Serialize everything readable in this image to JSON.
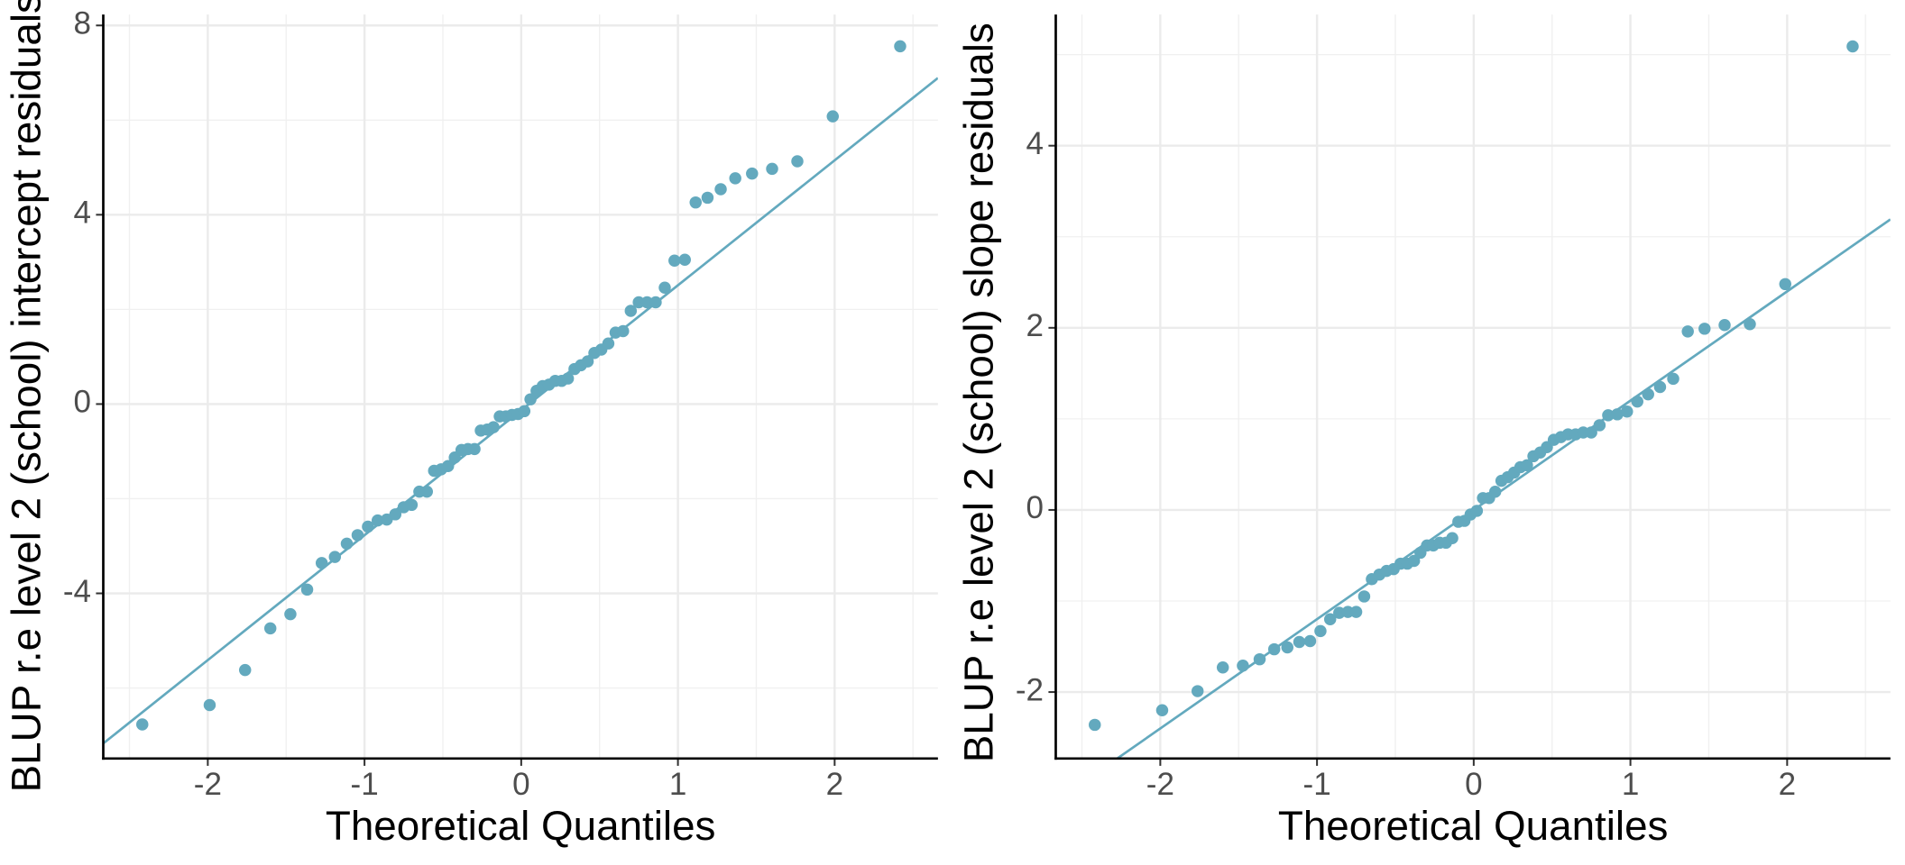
{
  "chart_data": [
    {
      "type": "scatter",
      "xlabel": "Theoretical Quantiles",
      "ylabel": "BLUP r.e level 2 (school) intercept residuals",
      "color": "#63a9be",
      "x": [
        -2.418,
        -1.988,
        -1.762,
        -1.601,
        -1.473,
        -1.366,
        -1.273,
        -1.189,
        -1.113,
        -1.044,
        -0.978,
        -0.916,
        -0.858,
        -0.803,
        -0.75,
        -0.699,
        -0.65,
        -0.602,
        -0.556,
        -0.511,
        -0.467,
        -0.424,
        -0.381,
        -0.34,
        -0.298,
        -0.258,
        -0.217,
        -0.177,
        -0.137,
        -0.098,
        -0.059,
        -0.02,
        0.02,
        0.059,
        0.098,
        0.137,
        0.177,
        0.217,
        0.258,
        0.298,
        0.34,
        0.381,
        0.424,
        0.467,
        0.511,
        0.556,
        0.602,
        0.65,
        0.699,
        0.75,
        0.803,
        0.858,
        0.916,
        0.978,
        1.044,
        1.113,
        1.189,
        1.273,
        1.366,
        1.473,
        1.601,
        1.762,
        1.988,
        2.418
      ],
      "values": [
        -6.77,
        -6.36,
        -5.62,
        -4.74,
        -4.44,
        -3.92,
        -3.36,
        -3.23,
        -2.95,
        -2.77,
        -2.59,
        -2.46,
        -2.44,
        -2.33,
        -2.18,
        -2.13,
        -1.85,
        -1.85,
        -1.41,
        -1.38,
        -1.31,
        -1.13,
        -0.97,
        -0.95,
        -0.95,
        -0.56,
        -0.54,
        -0.49,
        -0.26,
        -0.26,
        -0.23,
        -0.21,
        -0.15,
        0.1,
        0.28,
        0.38,
        0.41,
        0.49,
        0.49,
        0.54,
        0.74,
        0.82,
        0.9,
        1.08,
        1.15,
        1.28,
        1.51,
        1.54,
        1.97,
        2.15,
        2.15,
        2.15,
        2.46,
        3.03,
        3.05,
        4.26,
        4.36,
        4.54,
        4.77,
        4.87,
        4.97,
        5.13,
        6.08,
        7.56
      ],
      "reference_line": {
        "intercept": -0.13,
        "slope": 2.64
      },
      "xlim": [
        -2.667,
        2.659
      ],
      "xticks": [
        -2,
        -1,
        0,
        1,
        2
      ],
      "ylim": [
        -7.49,
        8.23
      ],
      "yticks": [
        -4,
        0,
        4,
        8
      ],
      "grid": true
    },
    {
      "type": "scatter",
      "xlabel": "Theoretical Quantiles",
      "ylabel": "BLUP r.e level 2 (school) slope residuals",
      "color": "#63a9be",
      "x": [
        -2.418,
        -1.988,
        -1.762,
        -1.601,
        -1.473,
        -1.366,
        -1.273,
        -1.189,
        -1.113,
        -1.044,
        -0.978,
        -0.916,
        -0.858,
        -0.803,
        -0.75,
        -0.699,
        -0.65,
        -0.602,
        -0.556,
        -0.511,
        -0.467,
        -0.424,
        -0.381,
        -0.34,
        -0.298,
        -0.258,
        -0.217,
        -0.177,
        -0.137,
        -0.098,
        -0.059,
        -0.02,
        0.02,
        0.059,
        0.098,
        0.137,
        0.177,
        0.217,
        0.258,
        0.298,
        0.34,
        0.381,
        0.424,
        0.467,
        0.511,
        0.556,
        0.602,
        0.65,
        0.699,
        0.75,
        0.803,
        0.858,
        0.916,
        0.978,
        1.044,
        1.113,
        1.189,
        1.273,
        1.366,
        1.473,
        1.601,
        1.762,
        1.988,
        2.418
      ],
      "values": [
        -2.36,
        -2.2,
        -1.99,
        -1.73,
        -1.71,
        -1.64,
        -1.53,
        -1.51,
        -1.45,
        -1.44,
        -1.33,
        -1.2,
        -1.13,
        -1.12,
        -1.12,
        -0.95,
        -0.76,
        -0.71,
        -0.67,
        -0.65,
        -0.59,
        -0.59,
        -0.56,
        -0.47,
        -0.39,
        -0.39,
        -0.36,
        -0.36,
        -0.31,
        -0.13,
        -0.12,
        -0.05,
        -0.01,
        0.13,
        0.13,
        0.2,
        0.32,
        0.36,
        0.41,
        0.47,
        0.49,
        0.59,
        0.63,
        0.69,
        0.77,
        0.8,
        0.83,
        0.83,
        0.85,
        0.85,
        0.93,
        1.04,
        1.05,
        1.08,
        1.19,
        1.27,
        1.35,
        1.44,
        1.96,
        1.99,
        2.03,
        2.04,
        2.48,
        5.09
      ],
      "reference_line": {
        "intercept": 0.0,
        "slope": 1.2
      },
      "xlim": [
        -2.667,
        2.659
      ],
      "xticks": [
        -2,
        -1,
        0,
        1,
        2
      ],
      "ylim": [
        -2.73,
        5.44
      ],
      "yticks": [
        -2,
        0,
        2,
        4
      ],
      "grid": true
    }
  ]
}
